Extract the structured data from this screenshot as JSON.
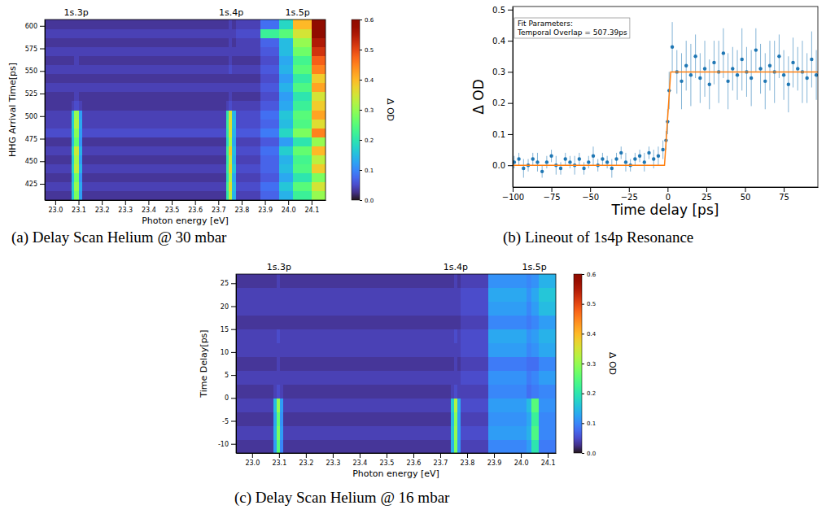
{
  "chart_data": [
    {
      "type": "heatmap",
      "title": "(a) Delay Scan Helium @ 30 mbar",
      "xlabel": "Photon energy [eV]",
      "ylabel": "HHG Arrival Time[ps]",
      "xlim": [
        22.955,
        24.16
      ],
      "ylim": [
        407,
        607
      ],
      "xticks": [
        {
          "value": 23.0,
          "label": "23.0"
        },
        23.1,
        23.2,
        23.3,
        23.4,
        23.5,
        23.6,
        23.7,
        23.8,
        23.9,
        {
          "value": 24.0,
          "label": "24.0"
        },
        24.1
      ],
      "yticks": [
        425,
        450,
        475,
        500,
        525,
        550,
        575,
        600
      ],
      "annotations": [
        {
          "text": "1s.3p",
          "x": 23.09
        },
        {
          "text": "1s.4p",
          "x": 23.755
        },
        {
          "text": "1s.5p",
          "x": 24.04
        }
      ],
      "x_edges": [
        22.955,
        23.07,
        23.08,
        23.1,
        23.115,
        23.735,
        23.745,
        23.76,
        23.775,
        23.88,
        23.96,
        24.02,
        24.1,
        24.16
      ],
      "y_edges": [
        407,
        417,
        427,
        437,
        447,
        457,
        467,
        477,
        487,
        497,
        507,
        517,
        527,
        537,
        547,
        557,
        567,
        577,
        587,
        597,
        607
      ],
      "cells": [
        [
          0.03,
          0.16,
          0.28,
          0.12,
          0.03,
          0.2,
          0.33,
          0.14,
          0.04,
          0.07,
          0.14,
          0.22,
          0.3
        ],
        [
          0.04,
          0.17,
          0.3,
          0.13,
          0.04,
          0.22,
          0.36,
          0.15,
          0.05,
          0.08,
          0.16,
          0.25,
          0.35
        ],
        [
          0.03,
          0.15,
          0.27,
          0.11,
          0.03,
          0.19,
          0.32,
          0.13,
          0.04,
          0.06,
          0.13,
          0.2,
          0.28
        ],
        [
          0.04,
          0.18,
          0.33,
          0.14,
          0.04,
          0.21,
          0.37,
          0.16,
          0.05,
          0.07,
          0.15,
          0.24,
          0.38
        ],
        [
          0.03,
          0.17,
          0.31,
          0.12,
          0.03,
          0.2,
          0.34,
          0.14,
          0.04,
          0.07,
          0.14,
          0.23,
          0.33
        ],
        [
          0.04,
          0.19,
          0.34,
          0.14,
          0.04,
          0.22,
          0.38,
          0.15,
          0.05,
          0.08,
          0.17,
          0.26,
          0.4
        ],
        [
          0.03,
          0.15,
          0.26,
          0.11,
          0.03,
          0.18,
          0.31,
          0.13,
          0.04,
          0.06,
          0.12,
          0.2,
          0.3
        ],
        [
          0.05,
          0.16,
          0.29,
          0.12,
          0.05,
          0.2,
          0.35,
          0.14,
          0.06,
          0.09,
          0.18,
          0.28,
          0.45
        ],
        [
          0.04,
          0.17,
          0.32,
          0.13,
          0.04,
          0.21,
          0.36,
          0.15,
          0.05,
          0.07,
          0.15,
          0.24,
          0.36
        ],
        [
          0.04,
          0.16,
          0.3,
          0.12,
          0.04,
          0.2,
          0.35,
          0.14,
          0.05,
          0.08,
          0.16,
          0.25,
          0.42
        ],
        [
          0.03,
          0.04,
          0.05,
          0.04,
          0.03,
          0.04,
          0.05,
          0.04,
          0.04,
          0.06,
          0.13,
          0.22,
          0.38
        ],
        [
          0.03,
          0.03,
          0.04,
          0.03,
          0.03,
          0.03,
          0.04,
          0.03,
          0.03,
          0.05,
          0.12,
          0.2,
          0.35
        ],
        [
          0.04,
          0.04,
          0.04,
          0.04,
          0.04,
          0.04,
          0.04,
          0.04,
          0.04,
          0.06,
          0.14,
          0.24,
          0.42
        ],
        [
          0.03,
          0.03,
          0.03,
          0.03,
          0.03,
          0.03,
          0.03,
          0.03,
          0.03,
          0.05,
          0.12,
          0.21,
          0.38
        ],
        [
          0.04,
          0.04,
          0.04,
          0.04,
          0.04,
          0.04,
          0.05,
          0.04,
          0.04,
          0.06,
          0.14,
          0.25,
          0.45
        ],
        [
          0.03,
          0.03,
          0.04,
          0.03,
          0.03,
          0.03,
          0.04,
          0.03,
          0.03,
          0.05,
          0.13,
          0.23,
          0.48
        ],
        [
          0.04,
          0.04,
          0.04,
          0.04,
          0.04,
          0.04,
          0.04,
          0.04,
          0.04,
          0.06,
          0.15,
          0.27,
          0.52
        ],
        [
          0.03,
          0.03,
          0.03,
          0.03,
          0.03,
          0.03,
          0.04,
          0.03,
          0.04,
          0.07,
          0.15,
          0.3,
          0.55
        ],
        [
          0.04,
          0.04,
          0.04,
          0.04,
          0.04,
          0.04,
          0.04,
          0.04,
          0.05,
          0.22,
          0.25,
          0.35,
          0.6
        ],
        [
          0.03,
          0.03,
          0.03,
          0.03,
          0.03,
          0.03,
          0.04,
          0.03,
          0.04,
          0.08,
          0.18,
          0.4,
          0.62
        ]
      ],
      "colorbar": {
        "label": "Δ OD",
        "range": [
          0,
          0.6
        ],
        "ticks": [
          {
            "value": 0,
            "label": "0.0"
          },
          0.1,
          0.2,
          0.3,
          0.4,
          0.5,
          0.6
        ]
      }
    },
    {
      "type": "scatter",
      "title": "(b) Lineout of 1s4p Resonance",
      "xlabel": "Time delay [ps]",
      "ylabel": "Δ OD",
      "xlim": [
        -100,
        97
      ],
      "ylim": [
        -0.07,
        0.51
      ],
      "xticks": [
        {
          "value": -100,
          "label": "−100"
        },
        {
          "value": -75,
          "label": "−75"
        },
        {
          "value": -50,
          "label": "−50"
        },
        {
          "value": -25,
          "label": "−25"
        },
        0,
        25,
        50,
        75
      ],
      "yticks": [
        {
          "value": 0,
          "label": "0.0"
        },
        0.1,
        0.2,
        0.3,
        0.4,
        0.5
      ],
      "annotations": [
        {
          "text": "Fit Parameters:"
        },
        {
          "text": "Temporal Overlap = 507.39ps"
        }
      ],
      "series": [
        {
          "type": "scatter",
          "color": "#1f77b4",
          "marker": "circle",
          "x": [
            -99,
            -96,
            -93,
            -90,
            -87,
            -84,
            -81,
            -78,
            -75,
            -72,
            -69,
            -66,
            -63,
            -60,
            -57,
            -54,
            -51,
            -48,
            -45,
            -42,
            -39,
            -36,
            -33,
            -30,
            -27,
            -24,
            -21,
            -18,
            -15,
            -12,
            -9,
            -6,
            -3,
            -1,
            0,
            1,
            3,
            6,
            9,
            12,
            15,
            18,
            21,
            24,
            27,
            30,
            33,
            36,
            39,
            42,
            45,
            48,
            51,
            54,
            57,
            60,
            63,
            66,
            69,
            72,
            75,
            78,
            81,
            84,
            87,
            90,
            93,
            96
          ],
          "values": [
            0.01,
            0.02,
            -0.01,
            0.0,
            0.02,
            0.01,
            -0.02,
            0.01,
            0.03,
            0.0,
            -0.01,
            0.02,
            0.01,
            0.0,
            0.02,
            -0.01,
            0.01,
            0.03,
            0.0,
            0.02,
            0.01,
            -0.01,
            0.02,
            0.04,
            0.01,
            0.0,
            0.02,
            0.03,
            0.01,
            0.04,
            0.02,
            0.03,
            0.05,
            0.08,
            0.14,
            0.24,
            0.38,
            0.3,
            0.27,
            0.32,
            0.29,
            0.35,
            0.28,
            0.31,
            0.26,
            0.33,
            0.3,
            0.36,
            0.27,
            0.31,
            0.29,
            0.34,
            0.3,
            0.28,
            0.37,
            0.31,
            0.27,
            0.32,
            0.3,
            0.35,
            0.29,
            0.26,
            0.33,
            0.31,
            0.3,
            0.28,
            0.34,
            0.29
          ],
          "errors": [
            0.02,
            0.02,
            0.03,
            0.02,
            0.02,
            0.03,
            0.02,
            0.02,
            0.02,
            0.03,
            0.02,
            0.02,
            0.02,
            0.03,
            0.02,
            0.02,
            0.02,
            0.03,
            0.02,
            0.02,
            0.02,
            0.03,
            0.02,
            0.02,
            0.03,
            0.02,
            0.02,
            0.02,
            0.03,
            0.02,
            0.03,
            0.03,
            0.03,
            0.03,
            0.04,
            0.06,
            0.08,
            0.07,
            0.09,
            0.08,
            0.1,
            0.07,
            0.08,
            0.09,
            0.08,
            0.07,
            0.1,
            0.08,
            0.09,
            0.07,
            0.08,
            0.1,
            0.08,
            0.09,
            0.07,
            0.08,
            0.09,
            0.08,
            0.1,
            0.07,
            0.08,
            0.09,
            0.08,
            0.07,
            0.1,
            0.08,
            0.09,
            0.08
          ]
        },
        {
          "type": "line",
          "color": "#ff7f0e",
          "line_style": "solid",
          "x": [
            -100,
            -2,
            0,
            2,
            97
          ],
          "values": [
            0,
            0,
            0.15,
            0.3,
            0.3
          ]
        }
      ]
    },
    {
      "type": "heatmap",
      "title": "(c) Delay Scan Helium @ 16 mbar",
      "xlabel": "Photon energy [eV]",
      "ylabel": "Time Delay[ps]",
      "xlim": [
        22.94,
        24.13
      ],
      "ylim": [
        -12,
        27
      ],
      "xticks": [
        {
          "value": 23.0,
          "label": "23.0"
        },
        23.1,
        23.2,
        23.3,
        23.4,
        23.5,
        23.6,
        23.7,
        23.8,
        23.9,
        {
          "value": 24.0,
          "label": "24.0"
        },
        24.1
      ],
      "yticks": [
        -10,
        -5,
        0,
        5,
        10,
        15,
        20,
        25
      ],
      "annotations": [
        {
          "text": "1s.3p",
          "x": 23.1
        },
        {
          "text": "1s.4p",
          "x": 23.757
        },
        {
          "text": "1s.5p",
          "x": 24.05
        }
      ],
      "x_edges": [
        22.94,
        23.08,
        23.09,
        23.105,
        23.115,
        23.74,
        23.75,
        23.765,
        23.775,
        23.88,
        24.02,
        24.04,
        24.065,
        24.13
      ],
      "y_edges": [
        -12,
        -9,
        -6,
        -3,
        0,
        3,
        6,
        9,
        12,
        15,
        18,
        21,
        24,
        27
      ],
      "cells": [
        [
          0.03,
          0.12,
          0.25,
          0.1,
          0.03,
          0.14,
          0.28,
          0.11,
          0.04,
          0.1,
          0.12,
          0.2,
          0.09
        ],
        [
          0.04,
          0.14,
          0.28,
          0.12,
          0.04,
          0.16,
          0.3,
          0.12,
          0.05,
          0.12,
          0.14,
          0.24,
          0.1
        ],
        [
          0.03,
          0.13,
          0.26,
          0.11,
          0.03,
          0.15,
          0.29,
          0.12,
          0.04,
          0.11,
          0.13,
          0.22,
          0.1
        ],
        [
          0.04,
          0.15,
          0.3,
          0.12,
          0.04,
          0.17,
          0.32,
          0.13,
          0.05,
          0.12,
          0.15,
          0.25,
          0.11
        ],
        [
          0.03,
          0.04,
          0.05,
          0.04,
          0.03,
          0.04,
          0.05,
          0.04,
          0.04,
          0.1,
          0.08,
          0.09,
          0.1
        ],
        [
          0.04,
          0.04,
          0.04,
          0.04,
          0.04,
          0.04,
          0.04,
          0.04,
          0.05,
          0.11,
          0.09,
          0.1,
          0.12
        ],
        [
          0.03,
          0.03,
          0.04,
          0.03,
          0.03,
          0.03,
          0.04,
          0.03,
          0.04,
          0.09,
          0.08,
          0.08,
          0.1
        ],
        [
          0.04,
          0.04,
          0.04,
          0.04,
          0.04,
          0.04,
          0.04,
          0.04,
          0.05,
          0.12,
          0.1,
          0.11,
          0.13
        ],
        [
          0.04,
          0.04,
          0.05,
          0.04,
          0.04,
          0.04,
          0.05,
          0.04,
          0.05,
          0.13,
          0.11,
          0.12,
          0.14
        ],
        [
          0.03,
          0.03,
          0.03,
          0.03,
          0.03,
          0.03,
          0.03,
          0.03,
          0.04,
          0.1,
          0.09,
          0.1,
          0.12
        ],
        [
          0.04,
          0.04,
          0.04,
          0.04,
          0.04,
          0.04,
          0.04,
          0.04,
          0.05,
          0.12,
          0.1,
          0.12,
          0.15
        ],
        [
          0.04,
          0.04,
          0.04,
          0.04,
          0.04,
          0.04,
          0.04,
          0.04,
          0.05,
          0.13,
          0.11,
          0.13,
          0.16
        ],
        [
          0.03,
          0.03,
          0.04,
          0.03,
          0.03,
          0.03,
          0.04,
          0.03,
          0.04,
          0.11,
          0.1,
          0.11,
          0.14
        ]
      ],
      "colorbar": {
        "label": "Δ OD",
        "range": [
          0,
          0.6
        ],
        "ticks": [
          {
            "value": 0,
            "label": "0.0"
          },
          0.1,
          0.2,
          0.3,
          0.4,
          0.5,
          0.6
        ]
      }
    }
  ]
}
